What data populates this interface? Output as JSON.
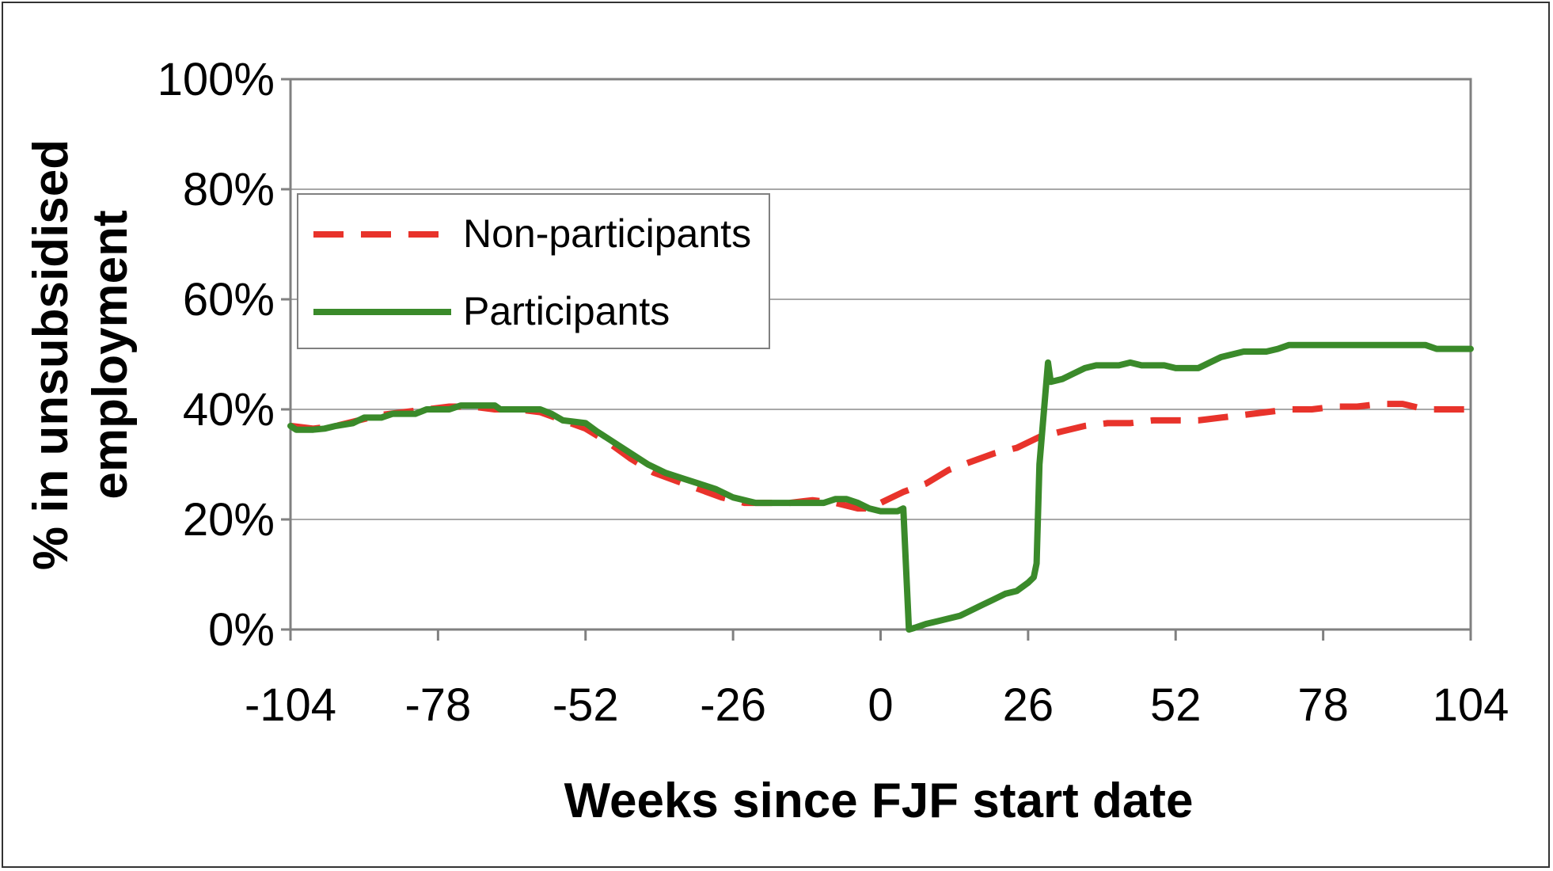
{
  "chart_data": {
    "type": "line",
    "xlabel": "Weeks since FJF start date",
    "ylabel_line1": "% in unsubsidised",
    "ylabel_line2": "employment",
    "xlim": [
      -104,
      104
    ],
    "ylim": [
      0,
      100
    ],
    "x_ticks": [
      -104,
      -78,
      -52,
      -26,
      0,
      26,
      52,
      78,
      104
    ],
    "x_tick_labels": [
      "-104",
      "-78",
      "-52",
      "-26",
      "0",
      "26",
      "52",
      "78",
      "104"
    ],
    "y_ticks": [
      0,
      20,
      40,
      60,
      80,
      100
    ],
    "y_tick_labels": [
      "0%",
      "20%",
      "40%",
      "60%",
      "80%",
      "100%"
    ],
    "grid": true,
    "legend_position": "top-left",
    "series": [
      {
        "name": "Non-participants",
        "color": "#e8332b",
        "style": "dashed",
        "points": [
          [
            -104,
            37
          ],
          [
            -100,
            36.5
          ],
          [
            -96,
            37
          ],
          [
            -92,
            38
          ],
          [
            -88,
            39
          ],
          [
            -84,
            39.5
          ],
          [
            -80,
            40
          ],
          [
            -76,
            40.5
          ],
          [
            -72,
            40.5
          ],
          [
            -68,
            40
          ],
          [
            -64,
            40
          ],
          [
            -60,
            39.5
          ],
          [
            -56,
            38
          ],
          [
            -52,
            36.5
          ],
          [
            -48,
            34
          ],
          [
            -44,
            31
          ],
          [
            -40,
            28.5
          ],
          [
            -36,
            27
          ],
          [
            -32,
            25.5
          ],
          [
            -28,
            24
          ],
          [
            -24,
            23
          ],
          [
            -20,
            23
          ],
          [
            -16,
            23
          ],
          [
            -12,
            23.5
          ],
          [
            -8,
            23
          ],
          [
            -4,
            22
          ],
          [
            -1,
            22
          ],
          [
            0,
            23
          ],
          [
            2,
            24
          ],
          [
            4,
            25
          ],
          [
            8,
            26.5
          ],
          [
            12,
            29
          ],
          [
            16,
            30.5
          ],
          [
            20,
            32
          ],
          [
            24,
            33
          ],
          [
            28,
            35
          ],
          [
            32,
            36
          ],
          [
            36,
            37
          ],
          [
            40,
            37.5
          ],
          [
            44,
            37.5
          ],
          [
            48,
            38
          ],
          [
            52,
            38
          ],
          [
            56,
            38
          ],
          [
            60,
            38.5
          ],
          [
            64,
            39
          ],
          [
            68,
            39.5
          ],
          [
            72,
            40
          ],
          [
            76,
            40
          ],
          [
            80,
            40.5
          ],
          [
            84,
            40.5
          ],
          [
            88,
            41
          ],
          [
            92,
            41
          ],
          [
            96,
            40
          ],
          [
            100,
            40
          ],
          [
            104,
            40
          ]
        ]
      },
      {
        "name": "Participants",
        "color": "#3a8a2a",
        "style": "solid",
        "points": [
          [
            -104,
            37
          ],
          [
            -103,
            36.3
          ],
          [
            -100,
            36.3
          ],
          [
            -98,
            36.5
          ],
          [
            -96,
            37
          ],
          [
            -93,
            37.5
          ],
          [
            -91,
            38.5
          ],
          [
            -88,
            38.5
          ],
          [
            -86,
            39.2
          ],
          [
            -82,
            39.2
          ],
          [
            -80,
            40
          ],
          [
            -76,
            40
          ],
          [
            -74,
            40.7
          ],
          [
            -68,
            40.7
          ],
          [
            -67,
            40
          ],
          [
            -60,
            40
          ],
          [
            -58,
            39.2
          ],
          [
            -56,
            38
          ],
          [
            -52,
            37.5
          ],
          [
            -50,
            36
          ],
          [
            -47,
            34
          ],
          [
            -44,
            32
          ],
          [
            -41,
            30
          ],
          [
            -38,
            28.5
          ],
          [
            -35,
            27.5
          ],
          [
            -32,
            26.5
          ],
          [
            -29,
            25.5
          ],
          [
            -26,
            24
          ],
          [
            -22,
            23
          ],
          [
            -10,
            23
          ],
          [
            -8,
            23.7
          ],
          [
            -6,
            23.7
          ],
          [
            -4,
            23
          ],
          [
            -2,
            22
          ],
          [
            0,
            21.5
          ],
          [
            3,
            21.5
          ],
          [
            4,
            22
          ],
          [
            5,
            0
          ],
          [
            6,
            0.3
          ],
          [
            8,
            1
          ],
          [
            10,
            1.5
          ],
          [
            12,
            2
          ],
          [
            14,
            2.5
          ],
          [
            16,
            3.5
          ],
          [
            18,
            4.5
          ],
          [
            20,
            5.5
          ],
          [
            22,
            6.5
          ],
          [
            24,
            7
          ],
          [
            26,
            8.5
          ],
          [
            27,
            9.5
          ],
          [
            27.5,
            12
          ],
          [
            28,
            30
          ],
          [
            29.5,
            48.5
          ],
          [
            30,
            45
          ],
          [
            32,
            45.5
          ],
          [
            34,
            46.5
          ],
          [
            36,
            47.5
          ],
          [
            38,
            48
          ],
          [
            42,
            48
          ],
          [
            44,
            48.5
          ],
          [
            46,
            48
          ],
          [
            50,
            48
          ],
          [
            52,
            47.5
          ],
          [
            56,
            47.5
          ],
          [
            58,
            48.5
          ],
          [
            60,
            49.5
          ],
          [
            64,
            50.5
          ],
          [
            68,
            50.5
          ],
          [
            70,
            51
          ],
          [
            72,
            51.7
          ],
          [
            80,
            51.7
          ],
          [
            90,
            51.7
          ],
          [
            96,
            51.7
          ],
          [
            98,
            51
          ],
          [
            104,
            51
          ]
        ]
      }
    ]
  }
}
